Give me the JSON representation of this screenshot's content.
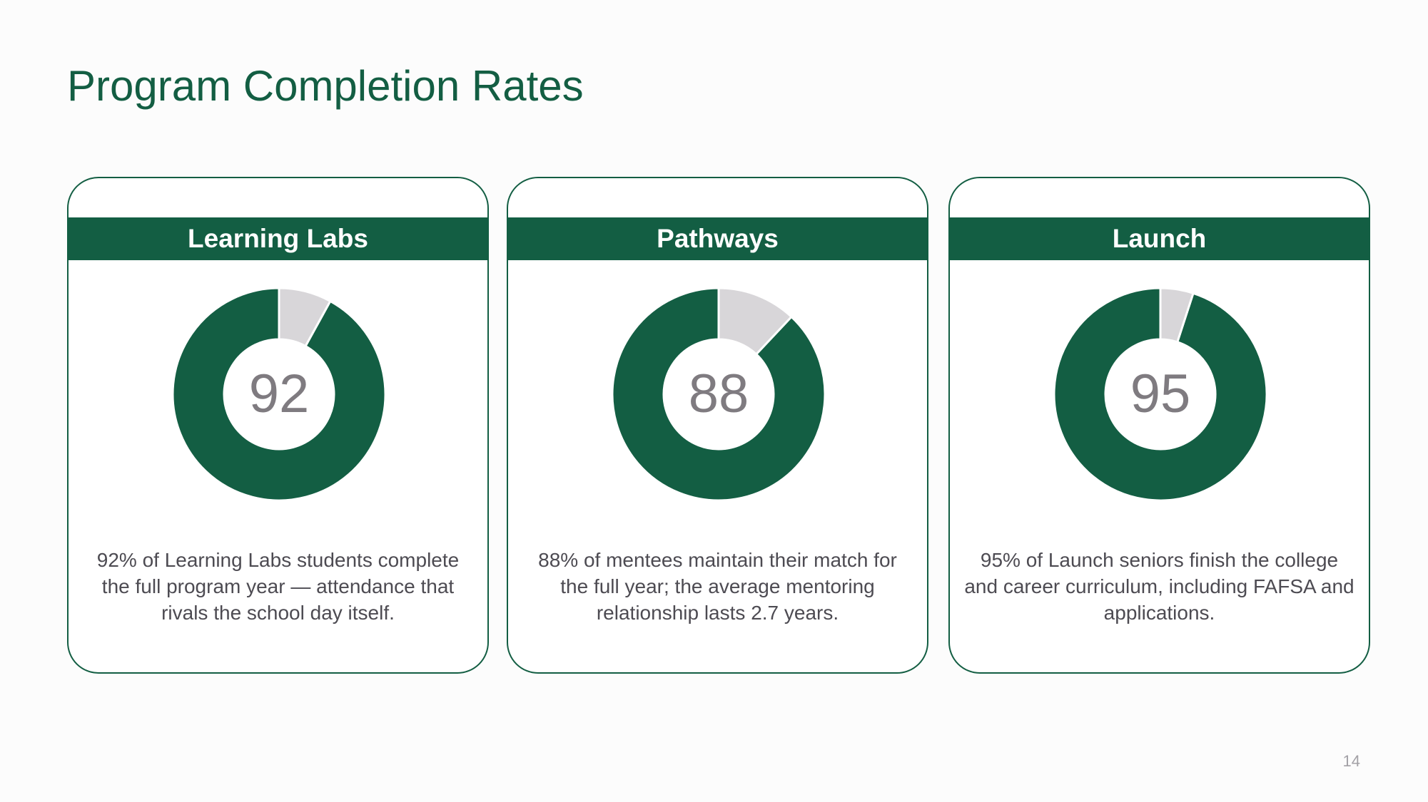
{
  "slide": {
    "title": "Program Completion Rates",
    "page_number": "14"
  },
  "colors": {
    "accent": "#135e43",
    "remainder": "#d8d6d9",
    "value_text": "#7f7b80",
    "body_text": "#4d4b52"
  },
  "chart_data": [
    {
      "type": "pie",
      "title": "Learning Labs",
      "center_label": "92",
      "values": [
        92,
        8
      ],
      "description": "92% of Learning Labs students complete the full program year — attendance that rivals the school day itself."
    },
    {
      "type": "pie",
      "title": "Pathways",
      "center_label": "88",
      "values": [
        88,
        12
      ],
      "description": "88% of mentees maintain their match for the full year; the average mentoring relationship lasts 2.7 years."
    },
    {
      "type": "pie",
      "title": "Launch",
      "center_label": "95",
      "values": [
        95,
        5
      ],
      "description": "95% of Launch seniors finish the college and career curriculum, including FAFSA and applications."
    }
  ]
}
